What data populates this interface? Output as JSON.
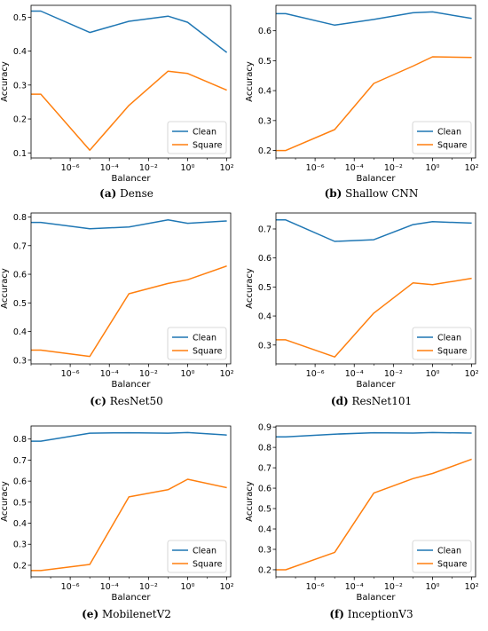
{
  "legend_labels": [
    "Clean",
    "Square"
  ],
  "colors": {
    "clean": "#1f77b4",
    "square": "#ff7f0e"
  },
  "chart_data": [
    {
      "type": "line",
      "caption_letter": "(a)",
      "caption_name": "Dense",
      "xlabel": "Balancer",
      "ylabel": "Accuracy",
      "x_scale": "log10",
      "x_exponents": [
        -8,
        -7.5,
        -5,
        -3,
        -1,
        0,
        2
      ],
      "xlim_exp": [
        -8,
        2.2
      ],
      "x_tick_exponents": [
        -6,
        -4,
        -2,
        0,
        2
      ],
      "x_tick_labels": [
        "10⁻⁶",
        "10⁻⁴",
        "10⁻²",
        "10⁰",
        "10²"
      ],
      "ylim": [
        0.085,
        0.535
      ],
      "y_ticks": [
        0.1,
        0.2,
        0.3,
        0.4,
        0.5
      ],
      "y_tick_labels": [
        "0.1",
        "0.2",
        "0.3",
        "0.4",
        "0.5"
      ],
      "legend_position": "bottom-right",
      "series": [
        {
          "name": "Clean",
          "values": [
            0.518,
            0.518,
            0.455,
            0.488,
            0.503,
            0.485,
            0.396
          ]
        },
        {
          "name": "Square",
          "values": [
            0.273,
            0.273,
            0.108,
            0.24,
            0.341,
            0.334,
            0.285
          ]
        }
      ]
    },
    {
      "type": "line",
      "caption_letter": "(b)",
      "caption_name": "Shallow CNN",
      "xlabel": "Balancer",
      "ylabel": "Accuracy",
      "x_scale": "log10",
      "x_exponents": [
        -8,
        -7.5,
        -5,
        -3,
        -1,
        0,
        2
      ],
      "xlim_exp": [
        -8,
        2.2
      ],
      "x_tick_exponents": [
        -6,
        -4,
        -2,
        0,
        2
      ],
      "x_tick_labels": [
        "10⁻⁶",
        "10⁻⁴",
        "10⁻²",
        "10⁰",
        "10²"
      ],
      "ylim": [
        0.175,
        0.685
      ],
      "y_ticks": [
        0.2,
        0.3,
        0.4,
        0.5,
        0.6
      ],
      "y_tick_labels": [
        "0.2",
        "0.3",
        "0.4",
        "0.5",
        "0.6"
      ],
      "legend_position": "bottom-right",
      "series": [
        {
          "name": "Clean",
          "values": [
            0.657,
            0.657,
            0.619,
            0.638,
            0.66,
            0.663,
            0.641
          ]
        },
        {
          "name": "Square",
          "values": [
            0.2,
            0.2,
            0.27,
            0.424,
            0.482,
            0.513,
            0.511
          ]
        }
      ]
    },
    {
      "type": "line",
      "caption_letter": "(c)",
      "caption_name": "ResNet50",
      "xlabel": "Balancer",
      "ylabel": "Accuracy",
      "x_scale": "log10",
      "x_exponents": [
        -8,
        -7.5,
        -5,
        -3,
        -1,
        0,
        2
      ],
      "xlim_exp": [
        -8,
        2.2
      ],
      "x_tick_exponents": [
        -6,
        -4,
        -2,
        0,
        2
      ],
      "x_tick_labels": [
        "10⁻⁶",
        "10⁻⁴",
        "10⁻²",
        "10⁰",
        "10²"
      ],
      "ylim": [
        0.287,
        0.814
      ],
      "y_ticks": [
        0.3,
        0.4,
        0.5,
        0.6,
        0.7,
        0.8
      ],
      "y_tick_labels": [
        "0.3",
        "0.4",
        "0.5",
        "0.6",
        "0.7",
        "0.8"
      ],
      "legend_position": "bottom-right",
      "series": [
        {
          "name": "Clean",
          "values": [
            0.781,
            0.781,
            0.759,
            0.765,
            0.79,
            0.778,
            0.786
          ]
        },
        {
          "name": "Square",
          "values": [
            0.335,
            0.335,
            0.313,
            0.532,
            0.568,
            0.581,
            0.629
          ]
        }
      ]
    },
    {
      "type": "line",
      "caption_letter": "(d)",
      "caption_name": "ResNet101",
      "xlabel": "Balancer",
      "ylabel": "Accuracy",
      "x_scale": "log10",
      "x_exponents": [
        -8,
        -7.5,
        -5,
        -3,
        -1,
        0,
        2
      ],
      "xlim_exp": [
        -8,
        2.2
      ],
      "x_tick_exponents": [
        -6,
        -4,
        -2,
        0,
        2
      ],
      "x_tick_labels": [
        "10⁻⁶",
        "10⁻⁴",
        "10⁻²",
        "10⁰",
        "10²"
      ],
      "ylim": [
        0.235,
        0.755
      ],
      "y_ticks": [
        0.3,
        0.4,
        0.5,
        0.6,
        0.7
      ],
      "y_tick_labels": [
        "0.3",
        "0.4",
        "0.5",
        "0.6",
        "0.7"
      ],
      "legend_position": "bottom-right",
      "series": [
        {
          "name": "Clean",
          "values": [
            0.731,
            0.731,
            0.657,
            0.663,
            0.715,
            0.725,
            0.72
          ]
        },
        {
          "name": "Square",
          "values": [
            0.318,
            0.318,
            0.259,
            0.41,
            0.514,
            0.508,
            0.53
          ]
        }
      ]
    },
    {
      "type": "line",
      "caption_letter": "(e)",
      "caption_name": "MobilenetV2",
      "xlabel": "Balancer",
      "ylabel": "Accuracy",
      "x_scale": "log10",
      "x_exponents": [
        -8,
        -7.5,
        -5,
        -3,
        -1,
        0,
        2
      ],
      "xlim_exp": [
        -8,
        2.2
      ],
      "x_tick_exponents": [
        -6,
        -4,
        -2,
        0,
        2
      ],
      "x_tick_labels": [
        "10⁻⁶",
        "10⁻⁴",
        "10⁻²",
        "10⁰",
        "10²"
      ],
      "ylim": [
        0.145,
        0.862
      ],
      "y_ticks": [
        0.2,
        0.3,
        0.4,
        0.5,
        0.6,
        0.7,
        0.8
      ],
      "y_tick_labels": [
        "0.2",
        "0.3",
        "0.4",
        "0.5",
        "0.6",
        "0.7",
        "0.8"
      ],
      "legend_position": "bottom-right",
      "series": [
        {
          "name": "Clean",
          "values": [
            0.79,
            0.79,
            0.828,
            0.83,
            0.828,
            0.831,
            0.819
          ]
        },
        {
          "name": "Square",
          "values": [
            0.175,
            0.175,
            0.204,
            0.525,
            0.559,
            0.609,
            0.569
          ]
        }
      ]
    },
    {
      "type": "line",
      "caption_letter": "(f)",
      "caption_name": "InceptionV3",
      "xlabel": "Balancer",
      "ylabel": "Accuracy",
      "x_scale": "log10",
      "x_exponents": [
        -8,
        -7.5,
        -5,
        -3,
        -1,
        0,
        2
      ],
      "xlim_exp": [
        -8,
        2.2
      ],
      "x_tick_exponents": [
        -6,
        -4,
        -2,
        0,
        2
      ],
      "x_tick_labels": [
        "10⁻⁶",
        "10⁻⁴",
        "10⁻²",
        "10⁰",
        "10²"
      ],
      "ylim": [
        0.165,
        0.905
      ],
      "y_ticks": [
        0.2,
        0.3,
        0.4,
        0.5,
        0.6,
        0.7,
        0.8,
        0.9
      ],
      "y_tick_labels": [
        "0.2",
        "0.3",
        "0.4",
        "0.5",
        "0.6",
        "0.7",
        "0.8",
        "0.9"
      ],
      "legend_position": "bottom-right",
      "series": [
        {
          "name": "Clean",
          "values": [
            0.852,
            0.852,
            0.865,
            0.872,
            0.87,
            0.873,
            0.87
          ]
        },
        {
          "name": "Square",
          "values": [
            0.2,
            0.2,
            0.285,
            0.576,
            0.647,
            0.672,
            0.742
          ]
        }
      ]
    }
  ]
}
